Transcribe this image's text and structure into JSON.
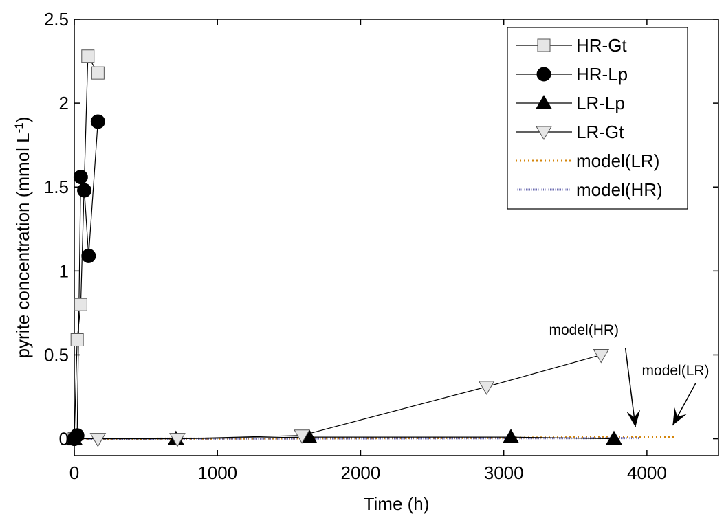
{
  "chart_data": {
    "type": "line",
    "title": "",
    "xlabel": "Time (h)",
    "ylabel_main": "pyrite concentration (mmol L",
    "ylabel_sup": "-1",
    "ylabel_close": ")",
    "xlim": [
      0,
      4500
    ],
    "ylim": [
      -0.1,
      2.5
    ],
    "xticks": [
      0,
      1000,
      2000,
      3000,
      4000
    ],
    "yticks": [
      0,
      0.5,
      1,
      1.5,
      2,
      2.5
    ],
    "xtick_labels": [
      "0",
      "1000",
      "2000",
      "3000",
      "4000"
    ],
    "ytick_labels": [
      "0",
      "0.5",
      "1",
      "1.5",
      "2",
      "2.5"
    ],
    "legend_position": "top-right",
    "series": [
      {
        "name": "HR-Gt",
        "marker": "square",
        "marker_color": "#e6e6e6",
        "line_color": "#000000",
        "x": [
          0,
          20,
          45,
          95,
          165
        ],
        "y": [
          0,
          0.59,
          0.8,
          2.28,
          2.18
        ]
      },
      {
        "name": "HR-Lp",
        "marker": "circle",
        "marker_color": "#000000",
        "line_color": "#000000",
        "x": [
          0,
          20,
          45,
          70,
          100,
          165
        ],
        "y": [
          0,
          0.02,
          1.56,
          1.48,
          1.09,
          1.89
        ]
      },
      {
        "name": "LR-Lp",
        "marker": "triangle-up",
        "marker_color": "#000000",
        "line_color": "#000000",
        "x": [
          0,
          710,
          1640,
          3050,
          3770
        ],
        "y": [
          0,
          0,
          0.01,
          0.01,
          0
        ]
      },
      {
        "name": "LR-Gt",
        "marker": "triangle-down",
        "marker_color": "#e6e6e6",
        "line_color": "#000000",
        "x": [
          165,
          720,
          1590,
          2880,
          3680
        ],
        "y": [
          0,
          0,
          0.02,
          0.31,
          0.5
        ]
      },
      {
        "name": "model(LR)",
        "marker": "none",
        "line_color": "#d4860b",
        "dash": "dotted",
        "x": [
          0,
          1000,
          2000,
          3000,
          4200
        ],
        "y": [
          0,
          0.001,
          0.003,
          0.006,
          0.012
        ]
      },
      {
        "name": "model(HR)",
        "marker": "none",
        "line_color": "#6b6bb0",
        "dash": "dense",
        "x": [
          0,
          1000,
          2000,
          3000,
          3950
        ],
        "y": [
          0,
          0.001,
          0.002,
          0.003,
          0.004
        ]
      }
    ],
    "annotations": [
      {
        "text": "model(HR)",
        "x": 3560,
        "y": 0.62,
        "arrow_from": [
          3850,
          0.54
        ],
        "arrow_to": [
          3920,
          0.07
        ]
      },
      {
        "text": "model(LR)",
        "x": 4200,
        "y": 0.38,
        "arrow_from": [
          4340,
          0.33
        ],
        "arrow_to": [
          4180,
          0.08
        ]
      }
    ]
  }
}
